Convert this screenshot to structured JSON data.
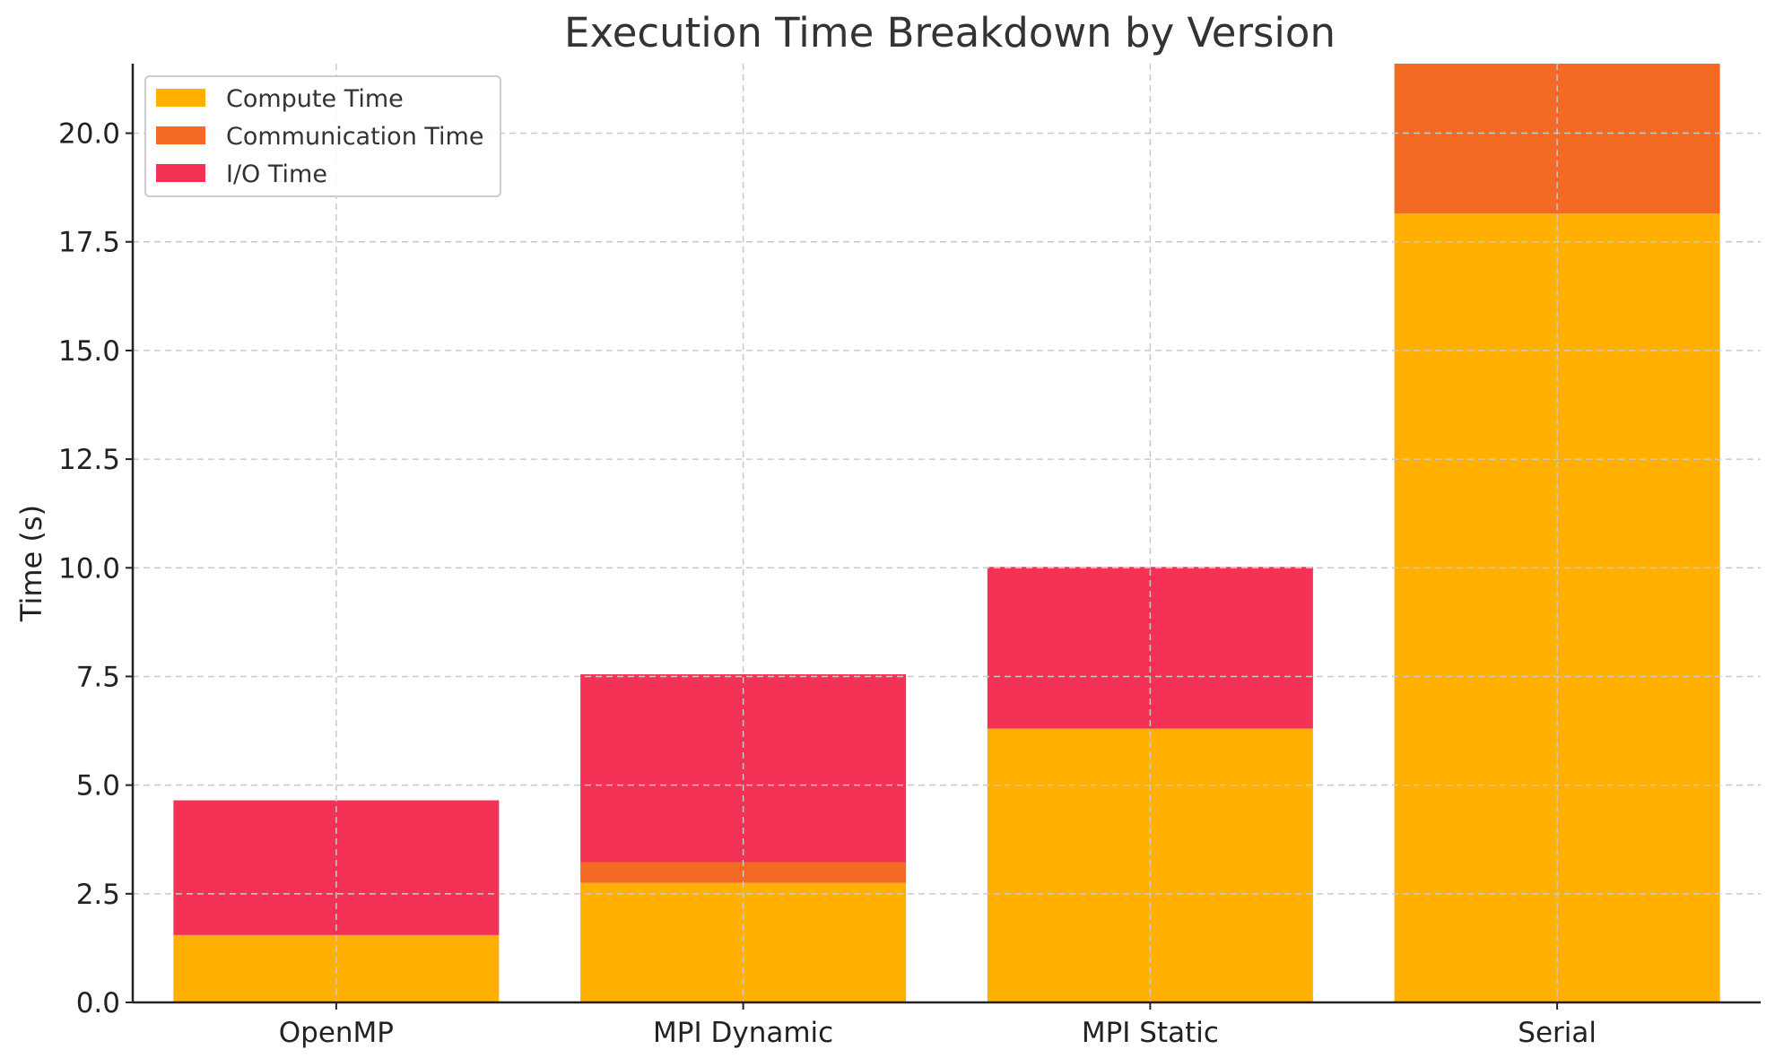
{
  "chart_data": {
    "type": "bar",
    "stacked": true,
    "title": "Execution Time Breakdown by Version",
    "xlabel": "",
    "ylabel": "Time (s)",
    "categories": [
      "OpenMP",
      "MPI Dynamic",
      "MPI Static",
      "Serial"
    ],
    "series": [
      {
        "name": "Compute Time",
        "color": "#FFB000",
        "values": [
          1.55,
          2.75,
          6.3,
          18.15
        ]
      },
      {
        "name": "Communication Time",
        "color": "#F46A25",
        "values": [
          0.0,
          0.47,
          0.0,
          3.5
        ]
      },
      {
        "name": "I/O Time",
        "color": "#F43256",
        "values": [
          3.1,
          4.33,
          3.72,
          0.0
        ]
      }
    ],
    "ylim": [
      0,
      21.6
    ],
    "yticks": [
      "0.0",
      "2.5",
      "5.0",
      "7.5",
      "10.0",
      "12.5",
      "15.0",
      "17.5",
      "20.0"
    ],
    "ytick_values": [
      0,
      2.5,
      5,
      7.5,
      10,
      12.5,
      15,
      17.5,
      20
    ],
    "grid": true,
    "legend_position": "top-left"
  }
}
